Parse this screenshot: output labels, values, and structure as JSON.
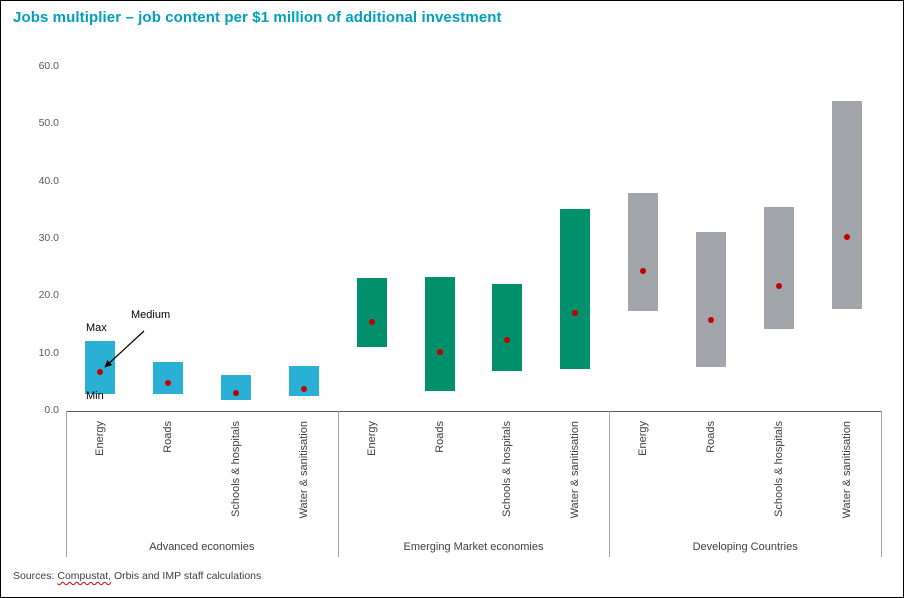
{
  "title": "Jobs multiplier – job content per $1 million of additional investment",
  "colors": {
    "title": "#009FBE",
    "dot": "#C00000",
    "advanced": "#29B0D4",
    "emerging": "#00916C",
    "developing": "#A2A6AA"
  },
  "annotations": {
    "max": "Max",
    "medium": "Medium",
    "min": "Min"
  },
  "source": {
    "prefix": "Sources: ",
    "flagged": "Compustat,",
    "rest": " Orbis and IMP staff calculations"
  },
  "chart_data": {
    "type": "range-bar",
    "title": "Jobs multiplier – job content per $1 million of additional investment",
    "ylabel": "",
    "xlabel": "",
    "ylim": [
      0,
      60
    ],
    "yticks": [
      "0.0",
      "10.0",
      "20.0",
      "30.0",
      "40.0",
      "50.0",
      "60.0"
    ],
    "grid": false,
    "dot_color": "#C00000",
    "legend": "annotated (Max / Medium / Min on first bar)",
    "groups": [
      {
        "label": "Advanced economies",
        "color": "#29B0D4",
        "bars": [
          {
            "category": "Energy",
            "min": 3.0,
            "max": 12.2,
            "medium": 6.8
          },
          {
            "category": "Roads",
            "min": 3.0,
            "max": 8.6,
            "medium": 4.8
          },
          {
            "category": "Schools & hospitals",
            "min": 2.0,
            "max": 6.2,
            "medium": 3.2
          },
          {
            "category": "Water & sanitisation",
            "min": 2.6,
            "max": 7.8,
            "medium": 3.9
          }
        ]
      },
      {
        "label": "Emerging Market economies",
        "color": "#00916C",
        "bars": [
          {
            "category": "Energy",
            "min": 11.2,
            "max": 23.2,
            "medium": 15.5
          },
          {
            "category": "Roads",
            "min": 3.5,
            "max": 23.3,
            "medium": 10.3
          },
          {
            "category": "Schools & hospitals",
            "min": 7.0,
            "max": 22.2,
            "medium": 12.3
          },
          {
            "category": "Water & sanitisation",
            "min": 7.4,
            "max": 35.2,
            "medium": 17.1
          }
        ]
      },
      {
        "label": "Developing Countries",
        "color": "#A2A6AA",
        "bars": [
          {
            "category": "Energy",
            "min": 17.4,
            "max": 38.0,
            "medium": 24.5
          },
          {
            "category": "Roads",
            "min": 7.6,
            "max": 31.3,
            "medium": 15.9
          },
          {
            "category": "Schools & hospitals",
            "min": 14.3,
            "max": 35.5,
            "medium": 21.8
          },
          {
            "category": "Water & sanitisation",
            "min": 17.8,
            "max": 54.0,
            "medium": 30.3
          }
        ]
      }
    ]
  }
}
